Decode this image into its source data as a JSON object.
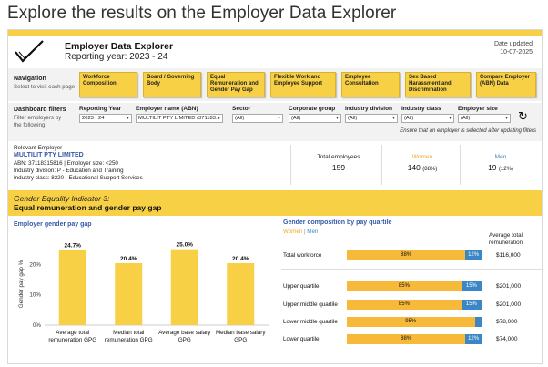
{
  "page_heading": "Explore the results on the Employer Data Explorer",
  "banner": {
    "title": "Employer Data Explorer",
    "reporting_year": "Reporting year: 2023 - 24",
    "date_label": "Date updated",
    "date_value": "10-07-2025",
    "brand_color": "#f7d045"
  },
  "navigation": {
    "label": "Navigation",
    "sub": "Select to visit each page",
    "buttons": [
      "Workforce Composition",
      "Board / Governing Body",
      "Equal Remuneration and Gender Pay Gap",
      "Flexible Work and Employee Support",
      "Employee Consultation",
      "Sex Based Harassment and Discrimination",
      "Compare Employer (ABN) Data"
    ]
  },
  "filters": {
    "label": "Dashboard filters",
    "sub": "Filter employers by the following",
    "items": [
      {
        "label": "Reporting Year",
        "value": "2023 - 24"
      },
      {
        "label": "Employer name (ABN)",
        "value": "MULTILIT PTY LIMITED (371183..."
      },
      {
        "label": "Sector",
        "value": "(All)"
      },
      {
        "label": "Corporate group",
        "value": "(All)"
      },
      {
        "label": "Industry division",
        "value": "(All)"
      },
      {
        "label": "Industry class",
        "value": "(All)"
      },
      {
        "label": "Employer size",
        "value": "(All)"
      }
    ],
    "note": "Ensure that an employer is selected after updating filters"
  },
  "employer": {
    "label": "Relevant Employer",
    "name": "MULTILIT PTY LIMITED",
    "abn_line": "ABN: 37118315816 | Employer size: <250",
    "division_line": "Industry division: P - Education and Training",
    "class_line": "Industry class: 8220 - Educational Support Services"
  },
  "stats": {
    "total_label": "Total employees",
    "total_value": "159",
    "women_label": "Women",
    "women_value": "140",
    "women_pct": "(88%)",
    "men_label": "Men",
    "men_value": "19",
    "men_pct": "(12%)",
    "women_color": "#f7b93a",
    "men_color": "#3a86c6"
  },
  "indicator": {
    "title": "Gender Equality Indicator 3:",
    "subtitle": "Equal remuneration and gender pay gap"
  },
  "chart_data": [
    {
      "type": "bar",
      "title": "Employer gender pay gap",
      "ylabel": "Gender pay gap %",
      "xlabel": "",
      "ylim": [
        0,
        27
      ],
      "yticks": [
        "0%",
        "10%",
        "20%"
      ],
      "categories": [
        "Average total remuneration GPG",
        "Median total remuneration GPG",
        "Average base salary GPG",
        "Median base salary GPG"
      ],
      "category_lines": [
        [
          "Average total",
          "remuneration GPG"
        ],
        [
          "Median total",
          "remuneration GPG"
        ],
        [
          "Average base salary",
          "GPG"
        ],
        [
          "Median base salary",
          "GPG"
        ]
      ],
      "values": [
        24.7,
        20.4,
        25.0,
        20.4
      ],
      "labels": [
        "24.7%",
        "20.4%",
        "25.0%",
        "20.4%"
      ],
      "color": "#f7d045",
      "grid": false
    },
    {
      "type": "bar",
      "title": "Gender composition by pay quartile",
      "legend": [
        "Women",
        "Men"
      ],
      "rem_header": [
        "Average total",
        "remuneration"
      ],
      "categories": [
        "Total workforce",
        "Upper quartile",
        "Upper middle quartile",
        "Lower middle quartile",
        "Lower quartile"
      ],
      "series": [
        {
          "name": "Women",
          "values": [
            88,
            85,
            85,
            95,
            88
          ],
          "labels": [
            "88%",
            "85%",
            "85%",
            "95%",
            "88%"
          ]
        },
        {
          "name": "Men",
          "values": [
            12,
            15,
            15,
            5,
            12
          ],
          "labels": [
            "12%",
            "15%",
            "15%",
            "",
            "12%"
          ]
        }
      ],
      "remuneration": [
        "$116,000",
        "$201,000",
        "$201,000",
        "$78,000",
        "$74,000"
      ]
    }
  ]
}
